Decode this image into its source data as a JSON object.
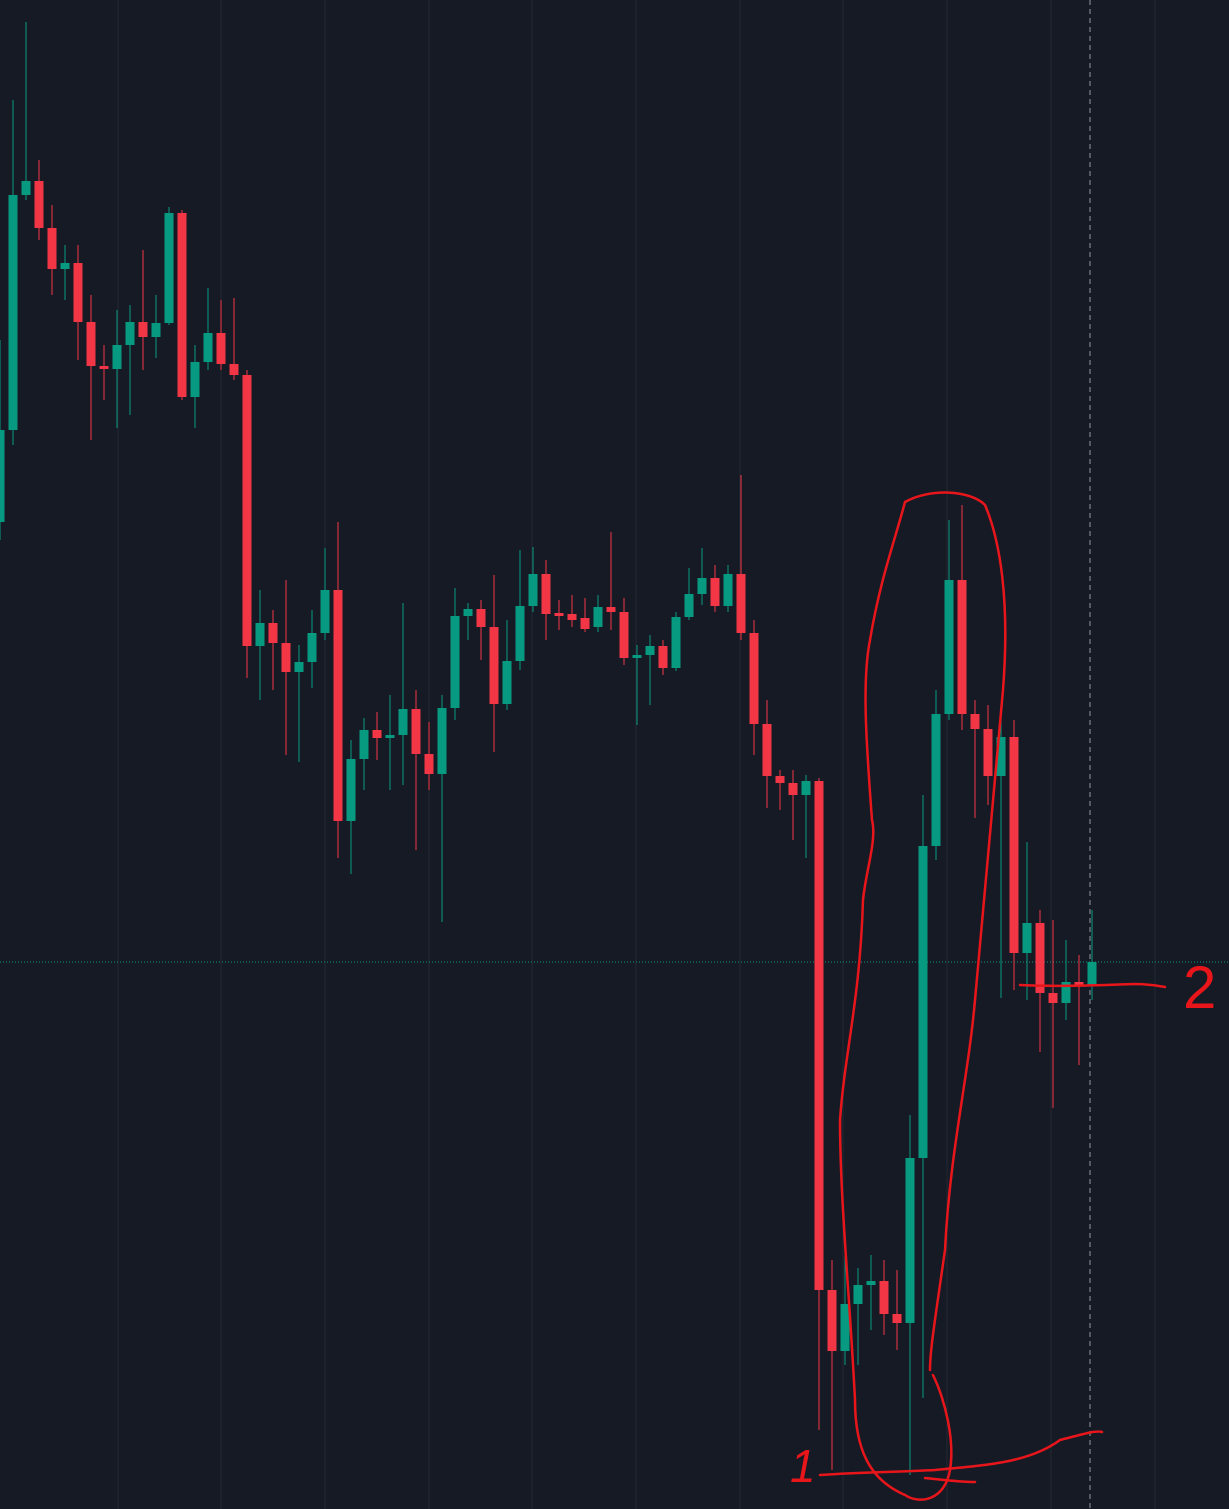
{
  "chart_data": {
    "type": "candlestick",
    "open": [
      987,
      1079,
      1314,
      1328,
      1281,
      1240,
      1246,
      1187,
      1143,
      1140,
      1164,
      1187,
      1172,
      1186,
      1296,
      1112,
      1147,
      1176,
      1145,
      1134,
      863,
      886,
      866,
      837,
      847,
      876,
      919,
      688,
      750,
      779,
      771,
      774,
      800,
      755,
      735,
      801,
      893,
      900,
      882,
      805,
      848,
      903,
      935,
      896,
      895,
      891,
      882,
      902,
      897,
      851,
      854,
      863,
      841,
      892,
      915,
      931,
      903,
      935,
      876,
      785,
      733,
      726,
      714,
      728,
      219,
      158,
      205,
      224,
      228,
      195,
      186,
      351,
      663,
      795,
      929,
      795,
      780,
      733,
      772,
      556,
      586,
      516,
      506,
      527,
      523
    ],
    "high": [
      1169,
      1409,
      1487,
      1349,
      1304,
      1264,
      1264,
      1214,
      1164,
      1199,
      1204,
      1259,
      1214,
      1302,
      1299,
      1164,
      1221,
      1209,
      1211,
      1139,
      919,
      899,
      929,
      864,
      899,
      961,
      987,
      769,
      791,
      797,
      814,
      906,
      819,
      787,
      814,
      921,
      906,
      909,
      934,
      889,
      959,
      962,
      949,
      909,
      914,
      911,
      914,
      977,
      911,
      864,
      874,
      869,
      897,
      941,
      961,
      944,
      944,
      1034,
      889,
      809,
      739,
      739,
      734,
      731,
      249,
      269,
      241,
      254,
      249,
      239,
      394,
      714,
      819,
      989,
      1004,
      809,
      804,
      799,
      789,
      667,
      599,
      589,
      569,
      554,
      599
    ],
    "low": [
      969,
      1064,
      1309,
      1269,
      1214,
      1209,
      1149,
      1069,
      1109,
      1081,
      1094,
      1139,
      1151,
      1184,
      1109,
      1081,
      1139,
      1139,
      1129,
      831,
      809,
      819,
      754,
      747,
      821,
      869,
      651,
      635,
      719,
      749,
      719,
      724,
      659,
      719,
      587,
      789,
      869,
      849,
      757,
      799,
      839,
      897,
      869,
      879,
      882,
      877,
      877,
      879,
      844,
      784,
      804,
      834,
      838,
      889,
      904,
      897,
      897,
      869,
      754,
      701,
      699,
      669,
      651,
      79,
      39,
      144,
      144,
      179,
      174,
      159,
      34,
      111,
      649,
      789,
      779,
      691,
      704,
      511,
      519,
      509,
      457,
      401,
      489,
      444,
      509
    ],
    "close": [
      1079,
      1314,
      1328,
      1281,
      1240,
      1246,
      1187,
      1143,
      1140,
      1164,
      1187,
      1172,
      1186,
      1296,
      1112,
      1147,
      1176,
      1145,
      1134,
      863,
      886,
      866,
      837,
      847,
      876,
      919,
      688,
      750,
      779,
      771,
      774,
      800,
      755,
      735,
      801,
      893,
      900,
      882,
      805,
      848,
      903,
      935,
      895,
      893,
      889,
      880,
      902,
      897,
      851,
      854,
      863,
      841,
      892,
      915,
      931,
      903,
      935,
      876,
      785,
      733,
      726,
      714,
      728,
      219,
      158,
      205,
      224,
      228,
      195,
      186,
      351,
      663,
      795,
      929,
      795,
      780,
      733,
      772,
      556,
      586,
      516,
      506,
      527,
      523,
      547
    ],
    "up_color": "#089981",
    "down_color": "#f23645",
    "ylim": [
      0,
      1509
    ],
    "price_line": 547,
    "price_line_color": "#089981",
    "annotations": [
      "1",
      "2"
    ],
    "annotation_color": "#e8161b"
  }
}
